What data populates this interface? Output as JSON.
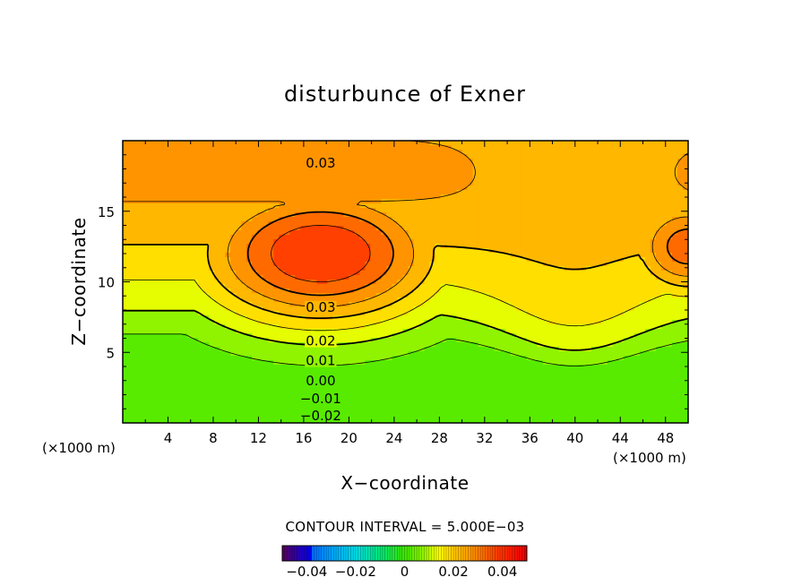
{
  "chart_data": {
    "type": "contour",
    "title": "disturbunce of Exner",
    "xlabel": "X−coordinate",
    "ylabel": "Z−coordinate",
    "x_unit": "(×1000 m)",
    "y_unit": "(×1000 m)",
    "xlim": [
      0,
      50
    ],
    "ylim": [
      0,
      20
    ],
    "x_ticks": [
      4,
      8,
      12,
      16,
      20,
      24,
      28,
      32,
      36,
      40,
      44,
      48
    ],
    "x_tick_labels": [
      "4",
      "8",
      "12",
      "16",
      "20",
      "24",
      "28",
      "32",
      "36",
      "40",
      "44",
      "48"
    ],
    "y_ticks": [
      5,
      10,
      15
    ],
    "y_tick_labels": [
      "5",
      "10",
      "15"
    ],
    "contour_interval_text": "CONTOUR INTERVAL =  5.000E−03",
    "contour_interval": 0.005,
    "value_range": [
      -0.05,
      0.05
    ],
    "contour_labels": [
      {
        "text": "0.03",
        "x": 17.5,
        "y": 18.4
      },
      {
        "text": "0.03",
        "x": 17.5,
        "y": 8.2
      },
      {
        "text": "0.02",
        "x": 17.5,
        "y": 5.8
      },
      {
        "text": "0.01",
        "x": 17.5,
        "y": 4.4
      },
      {
        "text": "0.00",
        "x": 17.5,
        "y": 3.0
      },
      {
        "text": "−0.01",
        "x": 17.5,
        "y": 1.7
      },
      {
        "text": "−0.02",
        "x": 17.5,
        "y": 0.5
      }
    ],
    "colorbar": {
      "ticks": [
        -0.04,
        -0.02,
        0,
        0.02,
        0.04
      ],
      "tick_labels": [
        "−0.04",
        "−0.02",
        "0",
        "0.02",
        "0.04"
      ],
      "range": [
        -0.05,
        0.05
      ]
    }
  }
}
